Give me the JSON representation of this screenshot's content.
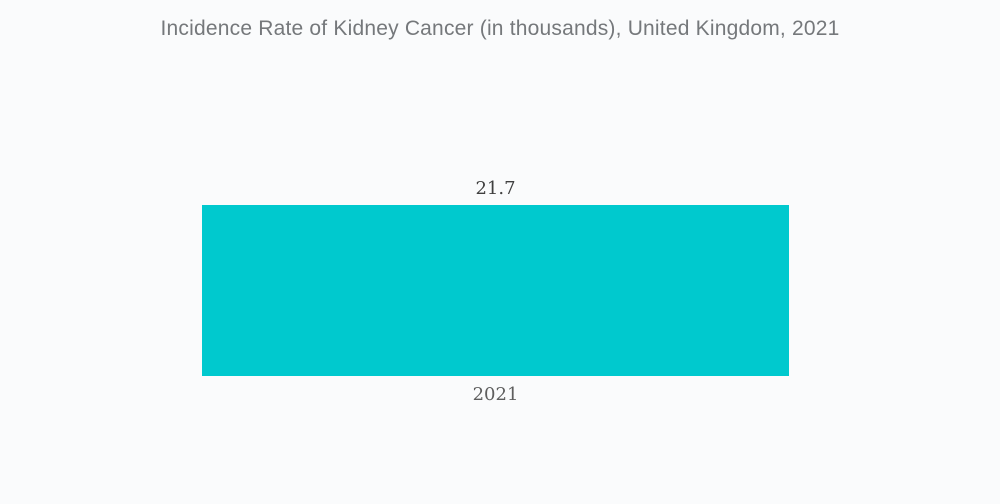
{
  "title": "Incidence Rate of Kidney Cancer (in thousands), United Kingdom, 2021",
  "colors": {
    "bar": "#00C9CE",
    "title_text": "#75787B",
    "value_text": "#3F3F3F",
    "category_text": "#5E5E5E",
    "background": "#FAFBFC"
  },
  "chart_data": {
    "type": "bar",
    "title": "Incidence Rate of Kidney Cancer (in thousands), United Kingdom, 2021",
    "categories": [
      "2021"
    ],
    "values": [
      21.7
    ],
    "value_labels": [
      "21.7"
    ],
    "xlabel": "",
    "ylabel": "",
    "ylim": [
      0,
      25
    ],
    "grid": false,
    "legend": false,
    "axes_visible": false,
    "bar_orientation": "vertical"
  }
}
